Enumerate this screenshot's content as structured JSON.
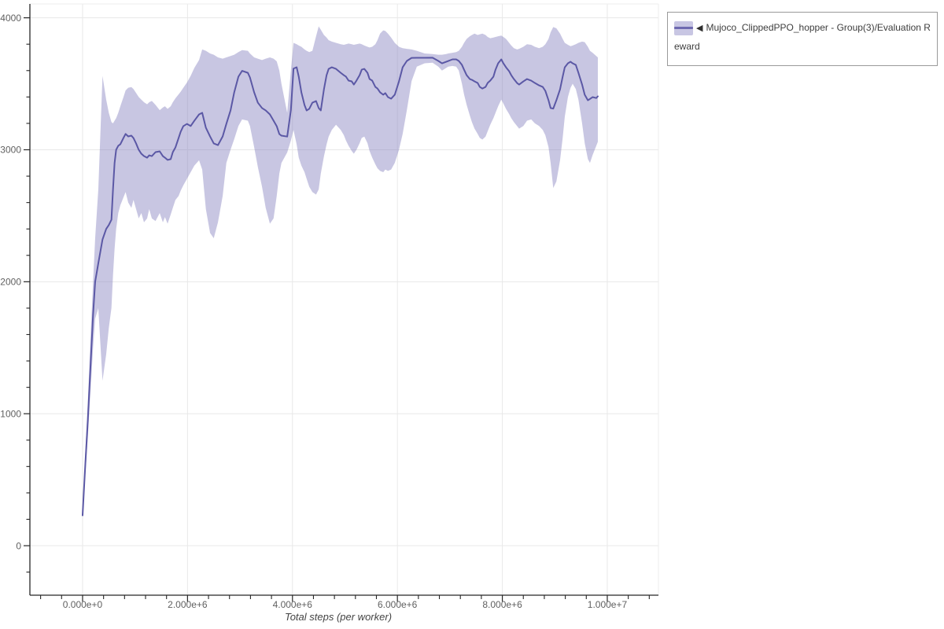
{
  "legend": {
    "collapse_glyph": "◀",
    "series_label": "Mujoco_ClippedPPO_hopper - Group(3)/Evaluation Reward"
  },
  "chart_data": {
    "type": "line",
    "title": "",
    "xlabel": "Total steps (per worker)",
    "ylabel": "",
    "grid": true,
    "legend_position": "top-right-outside",
    "xlim": [
      -1004000,
      10975000
    ],
    "ylim": [
      -375,
      4105
    ],
    "x_major_ticks": [
      0,
      2000000,
      4000000,
      6000000,
      8000000,
      10000000
    ],
    "x_major_tick_labels": [
      "0.000e+0",
      "2.000e+6",
      "4.000e+6",
      "6.000e+6",
      "8.000e+6",
      "1.000e+7"
    ],
    "x_minor_step": 400000,
    "y_major_ticks": [
      0,
      1000,
      2000,
      3000,
      4000
    ],
    "y_major_tick_labels": [
      "0",
      "1000",
      "2000",
      "3000",
      "4000"
    ],
    "y_minor_step": 200,
    "colors": {
      "line": "#5b58a5",
      "band": "#8580be",
      "band_opacity": 0.45,
      "grid": "#e8e8e8",
      "frame": "#ededed",
      "axis": "#262626",
      "tick_label": "#606060",
      "axis_title": "#444444",
      "legend_border": "#9a9a9a",
      "legend_text": "#3d3d3d"
    },
    "series": [
      {
        "name": "Mujoco_ClippedPPO_hopper - Group(3)/Evaluation Reward",
        "x_millions": [
          0.0,
          0.05,
          0.1,
          0.15,
          0.2,
          0.24,
          0.3,
          0.38,
          0.45,
          0.5,
          0.55,
          0.58,
          0.61,
          0.64,
          0.68,
          0.72,
          0.78,
          0.82,
          0.87,
          0.93,
          0.97,
          1.02,
          1.07,
          1.12,
          1.17,
          1.23,
          1.27,
          1.32,
          1.39,
          1.47,
          1.53,
          1.57,
          1.62,
          1.68,
          1.72,
          1.77,
          1.83,
          1.87,
          1.92,
          1.99,
          2.06,
          2.13,
          2.22,
          2.28,
          2.35,
          2.43,
          2.5,
          2.58,
          2.67,
          2.74,
          2.82,
          2.89,
          2.97,
          3.04,
          3.15,
          3.19,
          3.27,
          3.34,
          3.42,
          3.49,
          3.57,
          3.64,
          3.7,
          3.75,
          3.79,
          3.9,
          3.97,
          4.02,
          4.08,
          4.12,
          4.17,
          4.23,
          4.27,
          4.32,
          4.38,
          4.45,
          4.5,
          4.54,
          4.6,
          4.65,
          4.69,
          4.75,
          4.83,
          4.92,
          4.98,
          5.02,
          5.07,
          5.13,
          5.17,
          5.22,
          5.28,
          5.32,
          5.37,
          5.43,
          5.47,
          5.52,
          5.58,
          5.62,
          5.67,
          5.73,
          5.77,
          5.82,
          5.88,
          5.95,
          6.03,
          6.1,
          6.18,
          6.27,
          6.37,
          6.52,
          6.67,
          6.78,
          6.85,
          6.93,
          6.97,
          7.05,
          7.12,
          7.17,
          7.23,
          7.27,
          7.32,
          7.38,
          7.42,
          7.47,
          7.53,
          7.57,
          7.62,
          7.68,
          7.72,
          7.77,
          7.83,
          7.87,
          7.92,
          7.98,
          8.02,
          8.07,
          8.13,
          8.17,
          8.22,
          8.28,
          8.32,
          8.4,
          8.47,
          8.55,
          8.62,
          8.7,
          8.77,
          8.82,
          8.88,
          8.92,
          8.97,
          9.03,
          9.1,
          9.15,
          9.19,
          9.25,
          9.3,
          9.34,
          9.4,
          9.45,
          9.52,
          9.57,
          9.63,
          9.67,
          9.72,
          9.79,
          9.82
        ],
        "mean": [
          230,
          600,
          950,
          1350,
          1750,
          2000,
          2140,
          2320,
          2400,
          2430,
          2470,
          2700,
          2900,
          3000,
          3030,
          3042,
          3090,
          3120,
          3101,
          3107,
          3089,
          3048,
          3000,
          2970,
          2952,
          2940,
          2958,
          2952,
          2982,
          2988,
          2952,
          2940,
          2923,
          2929,
          2982,
          3018,
          3089,
          3137,
          3179,
          3196,
          3180,
          3220,
          3268,
          3280,
          3167,
          3101,
          3048,
          3035,
          3101,
          3196,
          3298,
          3435,
          3554,
          3598,
          3583,
          3548,
          3435,
          3357,
          3316,
          3298,
          3268,
          3220,
          3179,
          3119,
          3107,
          3100,
          3300,
          3615,
          3625,
          3554,
          3435,
          3339,
          3298,
          3310,
          3357,
          3369,
          3316,
          3298,
          3458,
          3565,
          3613,
          3625,
          3613,
          3583,
          3565,
          3554,
          3524,
          3518,
          3494,
          3524,
          3565,
          3607,
          3613,
          3583,
          3536,
          3524,
          3476,
          3464,
          3435,
          3417,
          3429,
          3399,
          3387,
          3417,
          3518,
          3625,
          3673,
          3696,
          3697,
          3697,
          3698,
          3673,
          3655,
          3667,
          3673,
          3685,
          3685,
          3673,
          3643,
          3607,
          3565,
          3536,
          3530,
          3518,
          3506,
          3476,
          3464,
          3476,
          3506,
          3524,
          3554,
          3607,
          3655,
          3685,
          3655,
          3625,
          3595,
          3565,
          3536,
          3506,
          3494,
          3518,
          3536,
          3524,
          3506,
          3488,
          3476,
          3446,
          3375,
          3316,
          3312,
          3375,
          3458,
          3554,
          3625,
          3655,
          3667,
          3655,
          3643,
          3583,
          3494,
          3417,
          3375,
          3385,
          3399,
          3392,
          3405
        ],
        "band_low": [
          215,
          520,
          820,
          1160,
          1500,
          1720,
          1800,
          1250,
          1450,
          1650,
          1800,
          2050,
          2250,
          2400,
          2520,
          2580,
          2640,
          2680,
          2600,
          2560,
          2620,
          2550,
          2480,
          2520,
          2450,
          2480,
          2550,
          2480,
          2460,
          2520,
          2450,
          2490,
          2440,
          2510,
          2560,
          2620,
          2650,
          2690,
          2730,
          2780,
          2830,
          2880,
          2920,
          2850,
          2550,
          2370,
          2330,
          2450,
          2650,
          2900,
          3000,
          3080,
          3180,
          3230,
          3220,
          3180,
          3020,
          2870,
          2720,
          2560,
          2440,
          2480,
          2650,
          2820,
          2900,
          2980,
          3070,
          3150,
          3040,
          2940,
          2880,
          2830,
          2780,
          2720,
          2680,
          2660,
          2700,
          2820,
          2950,
          3040,
          3100,
          3150,
          3190,
          3150,
          3110,
          3070,
          3030,
          2990,
          2970,
          3000,
          3050,
          3090,
          3100,
          3050,
          2990,
          2940,
          2890,
          2860,
          2840,
          2830,
          2850,
          2840,
          2850,
          2900,
          3000,
          3120,
          3300,
          3520,
          3630,
          3655,
          3660,
          3630,
          3600,
          3620,
          3630,
          3635,
          3630,
          3600,
          3500,
          3420,
          3340,
          3260,
          3210,
          3160,
          3120,
          3090,
          3077,
          3100,
          3140,
          3190,
          3240,
          3280,
          3330,
          3380,
          3350,
          3310,
          3270,
          3240,
          3210,
          3180,
          3160,
          3180,
          3220,
          3230,
          3200,
          3180,
          3150,
          3110,
          3020,
          2900,
          2710,
          2760,
          2920,
          3090,
          3250,
          3400,
          3470,
          3500,
          3460,
          3380,
          3200,
          3050,
          2930,
          2900,
          2960,
          3030,
          3060
        ],
        "band_high": [
          248,
          690,
          1090,
          1560,
          2000,
          2330,
          2700,
          3560,
          3380,
          3280,
          3210,
          3200,
          3220,
          3240,
          3280,
          3330,
          3400,
          3450,
          3470,
          3475,
          3460,
          3430,
          3400,
          3380,
          3360,
          3345,
          3360,
          3370,
          3340,
          3300,
          3320,
          3330,
          3310,
          3330,
          3360,
          3390,
          3420,
          3440,
          3470,
          3510,
          3560,
          3620,
          3680,
          3760,
          3750,
          3730,
          3720,
          3700,
          3690,
          3700,
          3710,
          3720,
          3740,
          3755,
          3750,
          3730,
          3700,
          3690,
          3680,
          3690,
          3700,
          3690,
          3670,
          3600,
          3500,
          3280,
          3600,
          3810,
          3800,
          3790,
          3780,
          3760,
          3750,
          3740,
          3750,
          3860,
          3935,
          3910,
          3870,
          3850,
          3830,
          3820,
          3810,
          3800,
          3795,
          3800,
          3805,
          3800,
          3795,
          3800,
          3805,
          3800,
          3790,
          3780,
          3775,
          3780,
          3800,
          3830,
          3880,
          3905,
          3900,
          3880,
          3850,
          3810,
          3780,
          3770,
          3765,
          3760,
          3750,
          3730,
          3725,
          3720,
          3720,
          3725,
          3730,
          3735,
          3740,
          3750,
          3780,
          3810,
          3840,
          3860,
          3870,
          3880,
          3870,
          3875,
          3880,
          3870,
          3855,
          3845,
          3850,
          3855,
          3860,
          3865,
          3855,
          3840,
          3810,
          3790,
          3770,
          3760,
          3765,
          3780,
          3800,
          3795,
          3780,
          3770,
          3780,
          3800,
          3840,
          3890,
          3930,
          3920,
          3880,
          3840,
          3810,
          3795,
          3785,
          3790,
          3800,
          3810,
          3820,
          3815,
          3780,
          3750,
          3735,
          3710,
          3700
        ]
      }
    ]
  }
}
